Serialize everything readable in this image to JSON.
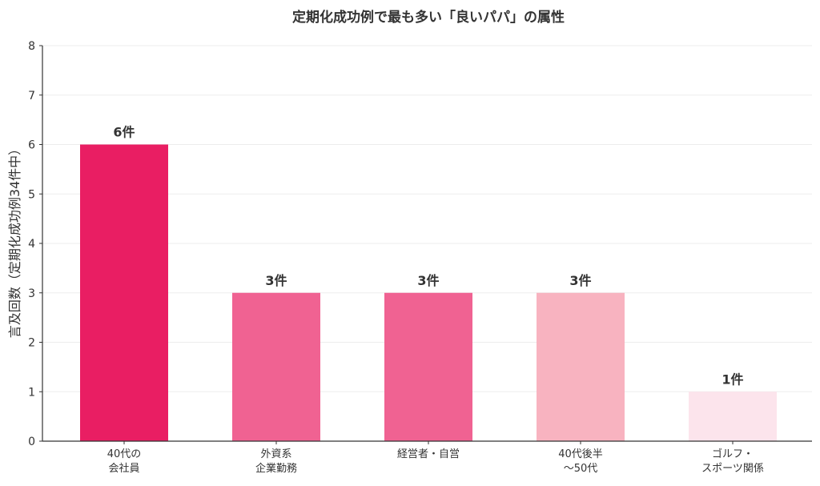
{
  "chart_data": {
    "type": "bar",
    "title": "定期化成功例で最も多い「良いパパ」の属性",
    "ylabel": "言及回数（定期化成功例34件中）",
    "xlabel": "",
    "ylim": [
      0,
      8
    ],
    "yticks": [
      0,
      1,
      2,
      3,
      4,
      5,
      6,
      7,
      8
    ],
    "grid": true,
    "categories": [
      [
        "40代の",
        "会社員"
      ],
      [
        "外資系",
        "企業勤務"
      ],
      [
        "経営者・自営"
      ],
      [
        "40代後半",
        "〜50代"
      ],
      [
        "ゴルフ・",
        "スポーツ関係"
      ]
    ],
    "values": [
      6,
      3,
      3,
      3,
      1
    ],
    "data_labels": [
      "6件",
      "3件",
      "3件",
      "3件",
      "1件"
    ],
    "colors": [
      "#e91e63",
      "#f06292",
      "#f06292",
      "#f8b3c0",
      "#fce4ec"
    ]
  }
}
